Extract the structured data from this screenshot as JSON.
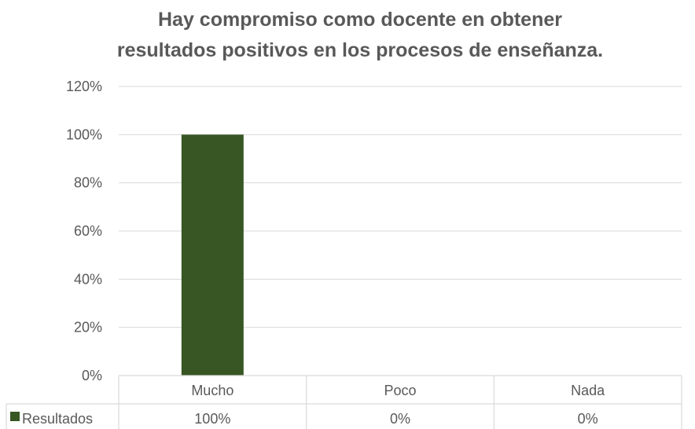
{
  "chart_data": {
    "type": "bar",
    "title_lines": [
      "Hay compromiso como docente en obtener",
      "resultados positivos en los procesos de enseñanza."
    ],
    "categories": [
      "Mucho",
      "Poco",
      "Nada"
    ],
    "series": [
      {
        "name": "Resultados",
        "values": [
          100,
          0,
          0
        ],
        "value_labels": [
          "100%",
          "0%",
          "0%"
        ],
        "color": "#375623"
      }
    ],
    "y_ticks": [
      "0%",
      "20%",
      "40%",
      "60%",
      "80%",
      "100%",
      "120%"
    ],
    "ylim": [
      0,
      120
    ],
    "grid": true,
    "legend": "data-table-left",
    "gridline_color": "#d9d9d9",
    "text_color": "#595959"
  }
}
